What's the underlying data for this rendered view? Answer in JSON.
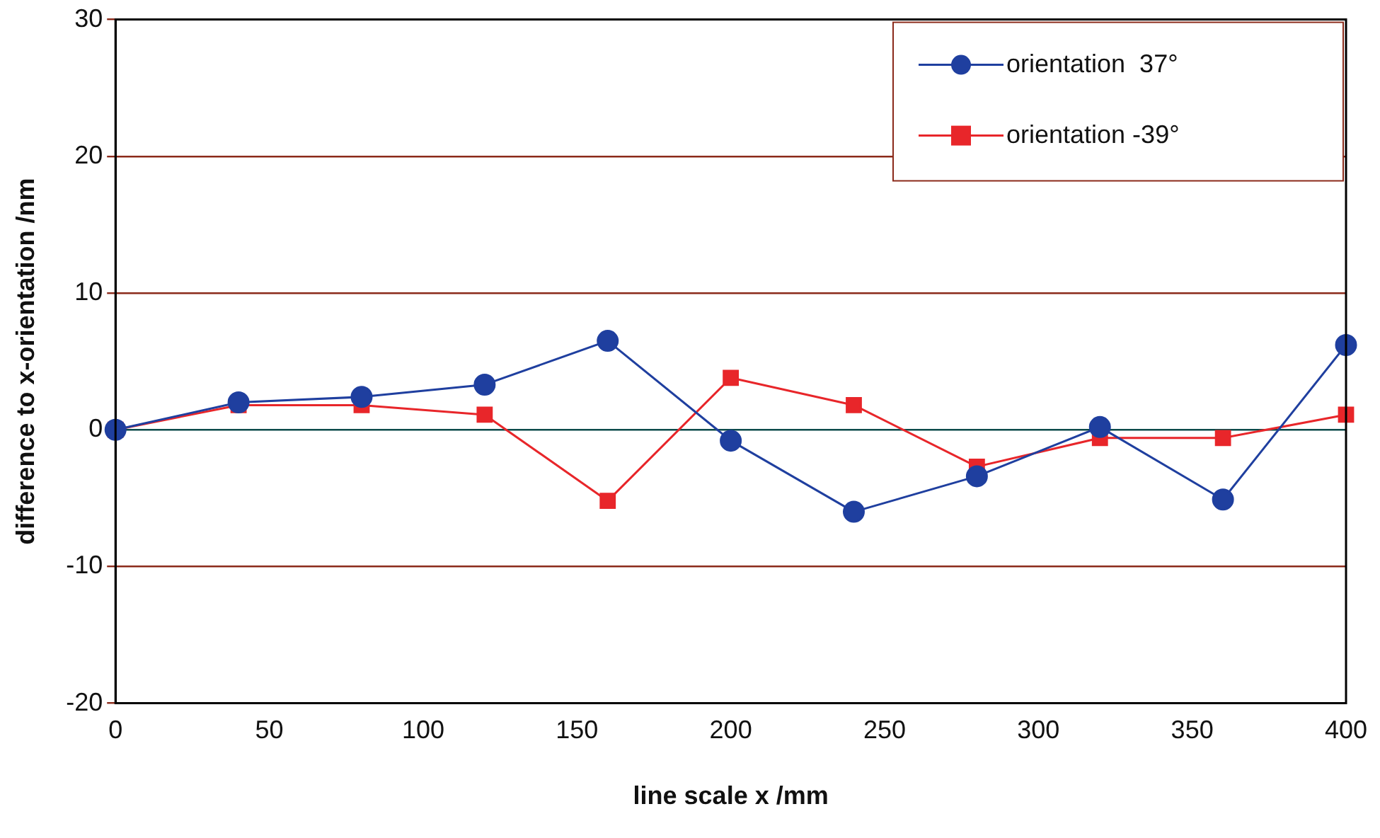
{
  "chart_data": {
    "type": "line",
    "xlabel": "line scale x /mm",
    "ylabel": "difference to x-orientation /nm",
    "x": [
      0,
      40,
      80,
      120,
      160,
      200,
      240,
      280,
      320,
      360,
      400
    ],
    "series": [
      {
        "name": "orientation  37°",
        "color": "#1f3f9f",
        "marker": "circle",
        "values": [
          0,
          2.0,
          2.4,
          3.3,
          6.5,
          -0.8,
          -6.0,
          -3.4,
          0.2,
          -5.1,
          6.2
        ]
      },
      {
        "name": "orientation -39°",
        "color": "#e8262a",
        "marker": "square",
        "values": [
          0,
          1.8,
          1.8,
          1.1,
          -5.2,
          3.8,
          1.8,
          -2.7,
          -0.6,
          -0.6,
          1.1
        ]
      }
    ],
    "xlim": [
      0,
      400
    ],
    "xticks": [
      0,
      50,
      100,
      150,
      200,
      250,
      300,
      350,
      400
    ],
    "ylim": [
      -20,
      30
    ],
    "yticks": [
      -20,
      -10,
      0,
      10,
      20,
      30
    ],
    "grid": "y",
    "legend": "top right"
  }
}
